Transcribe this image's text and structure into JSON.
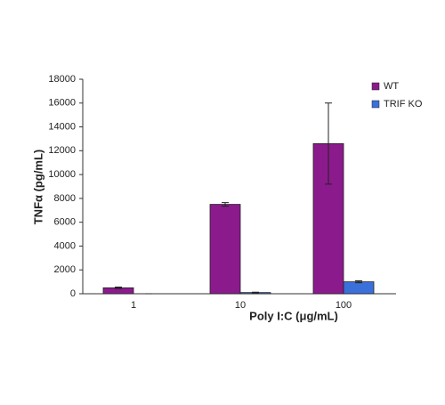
{
  "chart_data": {
    "type": "bar",
    "x_label": "Poly I:C (μg/mL)",
    "y_label": "TNFα (pg/mL)",
    "categories": [
      "1",
      "10",
      "100"
    ],
    "series": [
      {
        "name": "WT",
        "color": "#8b1a8c",
        "values": [
          500,
          7500,
          12600
        ],
        "errors": [
          60,
          150,
          3400
        ]
      },
      {
        "name": "TRIF KO",
        "color": "#3b6fd9",
        "values": [
          0,
          100,
          1000
        ],
        "errors": [
          0,
          30,
          80
        ]
      }
    ],
    "ylim": [
      0,
      18000
    ],
    "yticks": [
      0,
      2000,
      4000,
      6000,
      8000,
      10000,
      12000,
      14000,
      16000,
      18000
    ],
    "legend": "top-right"
  }
}
